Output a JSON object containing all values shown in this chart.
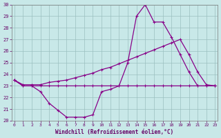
{
  "xlabel": "Windchill (Refroidissement éolien,°C)",
  "bg_color": "#c8e8e8",
  "line_color": "#880088",
  "ylim": [
    20,
    30
  ],
  "xlim": [
    -0.3,
    23.3
  ],
  "yticks": [
    20,
    21,
    22,
    23,
    24,
    25,
    26,
    27,
    28,
    29,
    30
  ],
  "xticks": [
    0,
    1,
    2,
    3,
    4,
    5,
    6,
    7,
    8,
    9,
    10,
    11,
    12,
    13,
    14,
    15,
    16,
    17,
    18,
    19,
    20,
    21,
    22,
    23
  ],
  "line_flat_x": [
    0,
    1,
    2,
    3,
    4,
    5,
    6,
    7,
    8,
    9,
    10,
    11,
    12,
    13,
    14,
    15,
    16,
    17,
    18,
    19,
    20,
    21,
    22,
    23
  ],
  "line_flat_y": [
    23.5,
    23.0,
    23.0,
    23.0,
    23.0,
    23.0,
    23.0,
    23.0,
    23.0,
    23.0,
    23.0,
    23.0,
    23.0,
    23.0,
    23.0,
    23.0,
    23.0,
    23.0,
    23.0,
    23.0,
    23.0,
    23.0,
    23.0,
    23.0
  ],
  "line_diag_x": [
    0,
    1,
    2,
    3,
    4,
    5,
    6,
    7,
    8,
    9,
    10,
    11,
    12,
    13,
    14,
    15,
    16,
    17,
    18,
    19,
    20,
    21,
    22,
    23
  ],
  "line_diag_y": [
    23.5,
    23.1,
    23.1,
    23.1,
    23.3,
    23.4,
    23.5,
    23.7,
    23.9,
    24.1,
    24.4,
    24.6,
    24.9,
    25.2,
    25.5,
    25.8,
    26.1,
    26.4,
    26.7,
    27.0,
    25.7,
    24.2,
    23.1,
    23.0
  ],
  "line_curve_x": [
    0,
    1,
    2,
    3,
    4,
    5,
    6,
    7,
    8,
    9,
    10,
    11,
    12,
    13,
    14,
    15,
    16,
    17,
    18,
    19,
    20,
    21,
    22,
    23
  ],
  "line_curve_y": [
    23.5,
    23.0,
    23.0,
    22.5,
    21.5,
    20.9,
    20.3,
    20.3,
    20.3,
    20.5,
    22.5,
    22.7,
    23.0,
    25.0,
    29.0,
    30.0,
    28.5,
    28.5,
    27.2,
    25.7,
    24.2,
    23.0,
    23.0,
    23.0
  ]
}
